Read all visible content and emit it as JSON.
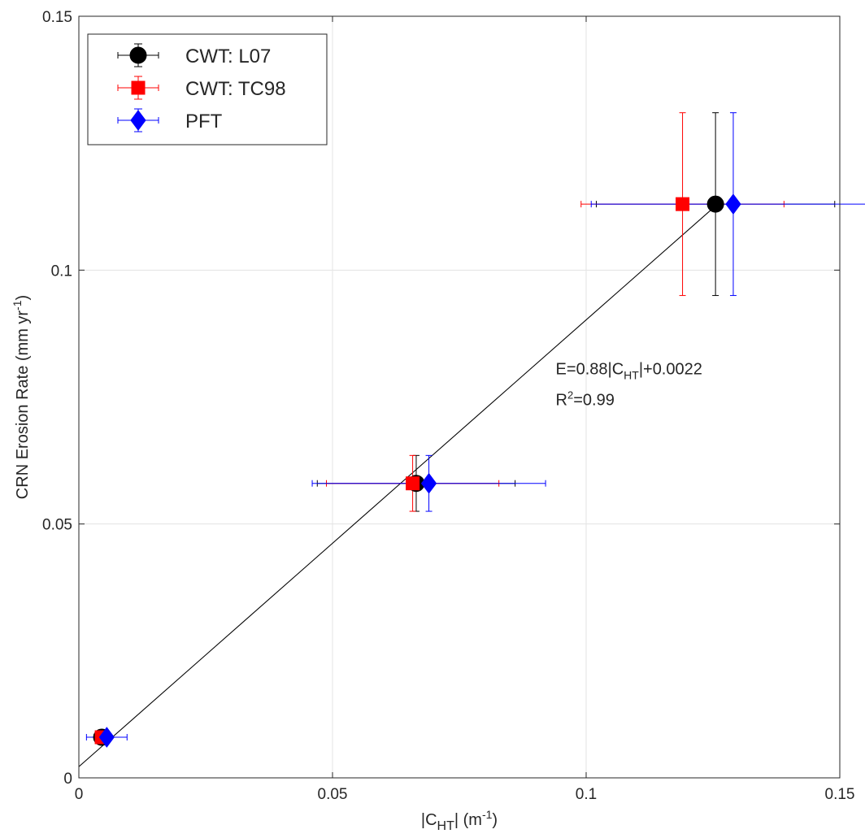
{
  "chart_data": {
    "type": "scatter",
    "x_axis_label": {
      "main": "|C",
      "sub": "HT",
      "rest": "| (m",
      "sup": "-1",
      "end": ")"
    },
    "y_axis_label": {
      "main": "CRN Erosion Rate (mm yr",
      "sup": "-1",
      "end": ")"
    },
    "xlim": [
      0,
      0.15
    ],
    "ylim": [
      0,
      0.15
    ],
    "x_ticks": [
      0,
      0.05,
      0.1,
      0.15
    ],
    "x_tick_labels": [
      "0",
      "0.05",
      "0.1",
      "0.15"
    ],
    "y_ticks": [
      0,
      0.05,
      0.1,
      0.15
    ],
    "y_tick_labels": [
      "0",
      "0.05",
      "0.1",
      "0.15"
    ],
    "grid": true,
    "legend_position": "top-left",
    "series": [
      {
        "name": "CWT: L07",
        "marker": "circle",
        "color": "#000000",
        "errorbar_color": "#000000",
        "points": [
          {
            "x": 0.0045,
            "y": 0.008,
            "xerr": [
              0.0015,
              0.0015
            ],
            "yerr": [
              0.001,
              0.001
            ]
          },
          {
            "x": 0.0665,
            "y": 0.058,
            "xerr": [
              0.0195,
              0.0195
            ],
            "yerr": [
              0.0055,
              0.0055
            ]
          },
          {
            "x": 0.1255,
            "y": 0.113,
            "xerr": [
              0.0235,
              0.0235
            ],
            "yerr": [
              0.018,
              0.018
            ]
          }
        ]
      },
      {
        "name": "CWT: TC98",
        "marker": "square",
        "color": "#ff0000",
        "errorbar_color": "#ff0000",
        "points": [
          {
            "x": 0.0045,
            "y": 0.008,
            "xerr": [
              0.0012,
              0.0012
            ],
            "yerr": [
              0.001,
              0.001
            ]
          },
          {
            "x": 0.0658,
            "y": 0.058,
            "xerr": [
              0.017,
              0.017
            ],
            "yerr": [
              0.0055,
              0.0055
            ]
          },
          {
            "x": 0.119,
            "y": 0.113,
            "xerr": [
              0.02,
              0.02
            ],
            "yerr": [
              0.018,
              0.018
            ]
          }
        ]
      },
      {
        "name": "PFT",
        "marker": "diamond",
        "color": "#0000ff",
        "errorbar_color": "#0000ff",
        "points": [
          {
            "x": 0.0055,
            "y": 0.008,
            "xerr": [
              0.004,
              0.004
            ],
            "yerr": [
              0.001,
              0.001
            ]
          },
          {
            "x": 0.069,
            "y": 0.058,
            "xerr": [
              0.023,
              0.023
            ],
            "yerr": [
              0.0055,
              0.0055
            ]
          },
          {
            "x": 0.129,
            "y": 0.113,
            "xerr": [
              0.028,
              0.028
            ],
            "yerr": [
              0.018,
              0.018
            ]
          }
        ]
      }
    ],
    "fit_line": {
      "slope": 0.88,
      "intercept": 0.0022,
      "x_range": [
        0,
        0.126
      ],
      "color": "#000000"
    },
    "annotation": {
      "equation": {
        "main": "E=0.88|C",
        "sub": "HT",
        "rest": "|+0.0022"
      },
      "r2": {
        "main": "R",
        "sup": "2",
        "rest": "=0.99"
      },
      "x": 0.094,
      "y": 0.0795
    },
    "colors": {
      "grid": "#e3e3e3",
      "axis": "#262626",
      "background": "#ffffff"
    }
  }
}
